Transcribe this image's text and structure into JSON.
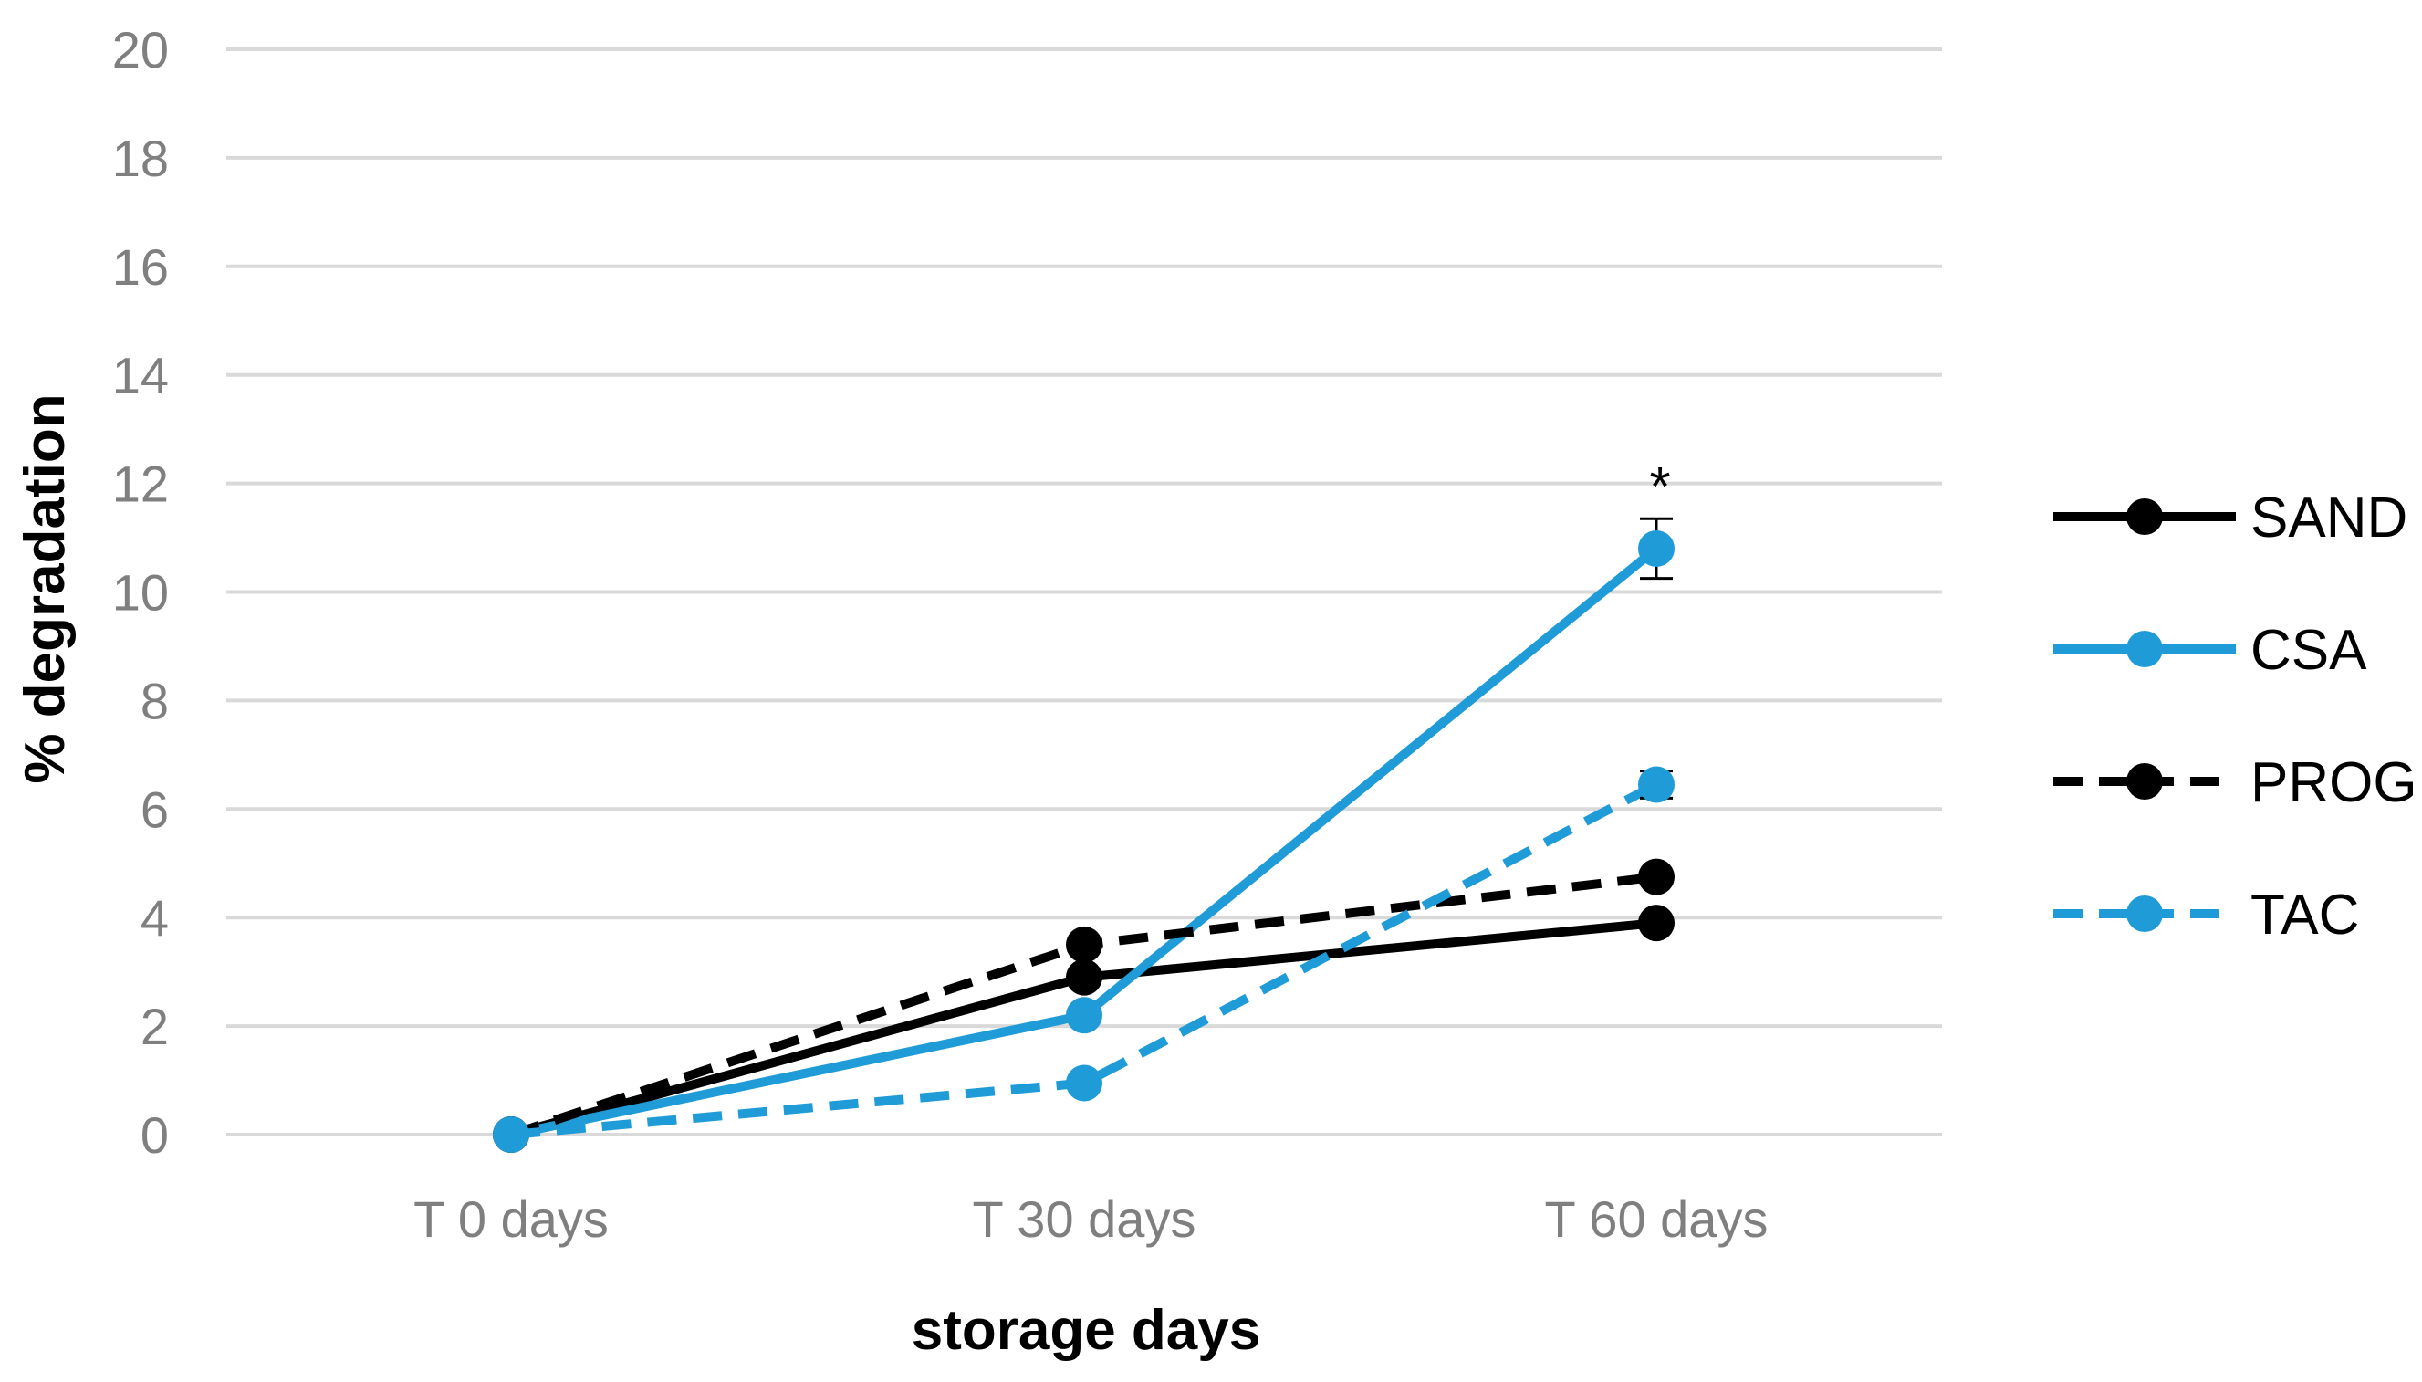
{
  "chart_data": {
    "type": "line",
    "title": "",
    "xlabel": "storage days",
    "ylabel": "% degradation",
    "categories": [
      "T 0 days",
      "T 30 days",
      "T 60  days"
    ],
    "ylim": [
      0,
      20
    ],
    "yticks": [
      0,
      2,
      4,
      6,
      8,
      10,
      12,
      14,
      16,
      18,
      20
    ],
    "grid": true,
    "legend_position": "right",
    "series": [
      {
        "name": "SAND",
        "values": [
          0,
          2.9,
          3.9
        ],
        "color": "#000000",
        "dashed": false,
        "error": [
          0,
          0,
          0
        ]
      },
      {
        "name": "CSA",
        "values": [
          0,
          2.2,
          10.8
        ],
        "color": "#1f9bd7",
        "dashed": false,
        "error": [
          0,
          0,
          0.55
        ]
      },
      {
        "name": "PROG",
        "values": [
          0,
          3.5,
          4.75
        ],
        "color": "#000000",
        "dashed": true,
        "error": [
          0,
          0,
          0
        ]
      },
      {
        "name": "TAC",
        "values": [
          0,
          0.95,
          6.45
        ],
        "color": "#1f9bd7",
        "dashed": true,
        "error": [
          0,
          0,
          0.25
        ]
      }
    ],
    "annotations": [
      {
        "text": "*",
        "category": "T 60  days",
        "y": 12.1
      }
    ]
  }
}
